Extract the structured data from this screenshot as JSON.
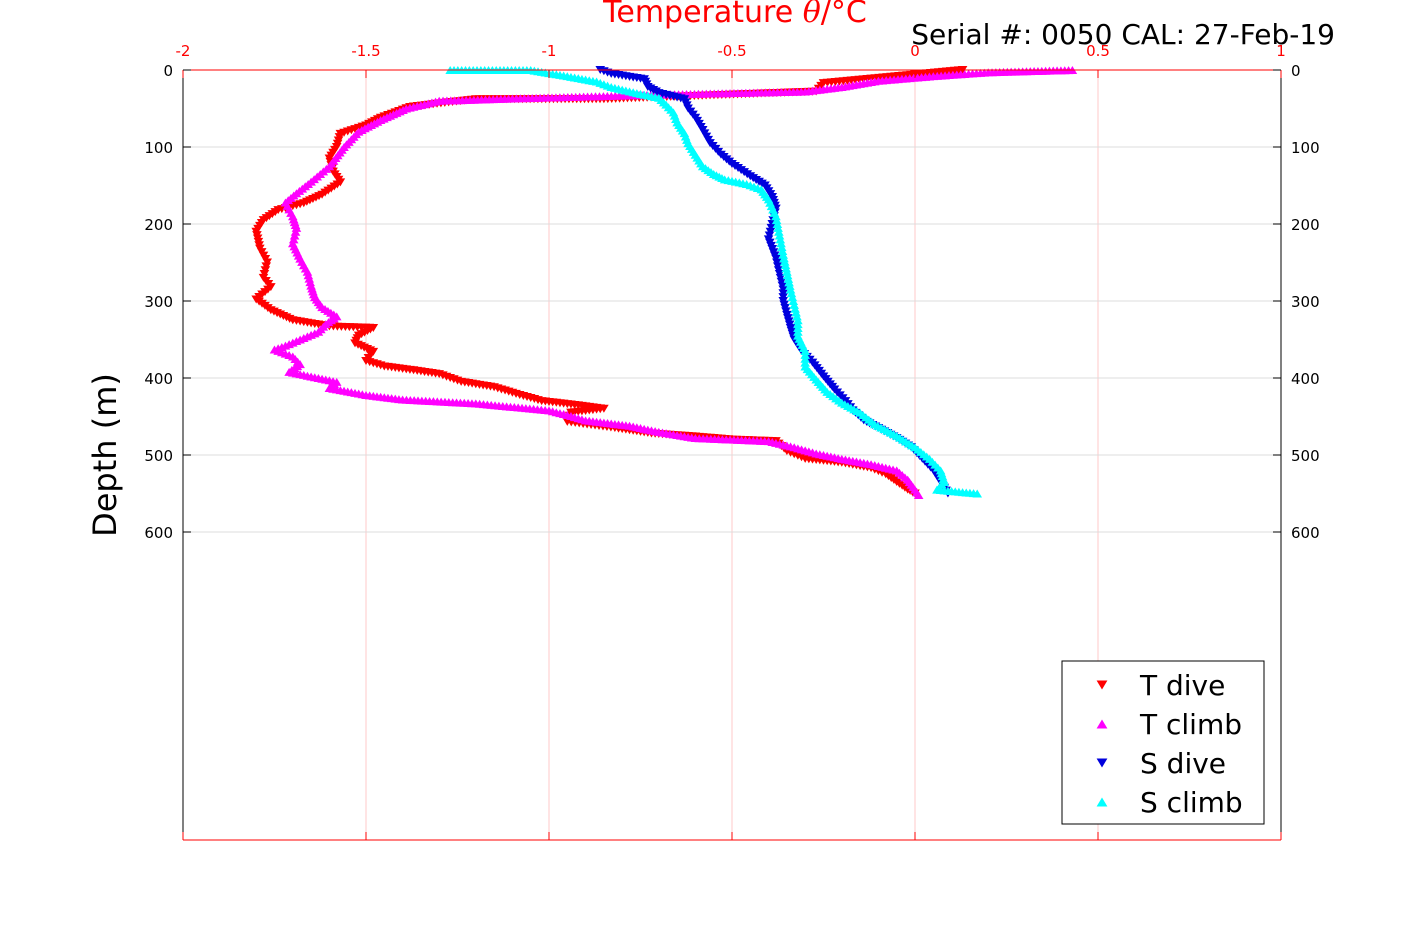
{
  "header": {
    "title_prefix": "Temperature ",
    "title_symbol": "θ",
    "title_unit": "/°C",
    "serial_text": "Serial #: 0050  CAL: 27-Feb-19"
  },
  "chart_data": {
    "type": "scatter",
    "title": "Temperature θ/°C",
    "ylabel": "Depth (m)",
    "xlim": [
      -2,
      1
    ],
    "ylim": [
      0,
      1000
    ],
    "y_reversed": true,
    "x_axis_position": "top",
    "x_ticks": [
      "-2",
      "-1.5",
      "-1",
      "-0.5",
      "0",
      "0.5",
      "1"
    ],
    "x_tick_values": [
      -2,
      -1.5,
      -1,
      -0.5,
      0,
      0.5,
      1
    ],
    "y_ticks": [
      "0",
      "100",
      "200",
      "300",
      "400",
      "500",
      "600"
    ],
    "y_tick_values": [
      0,
      100,
      200,
      300,
      400,
      500,
      600
    ],
    "grid": true,
    "legend_position": "bottom-right",
    "series": [
      {
        "name": "T dive",
        "color": "#ff0000",
        "marker": "triangle-down",
        "points": [
          [
            0.13,
            0
          ],
          [
            -0.25,
            17
          ],
          [
            -0.27,
            28
          ],
          [
            -0.85,
            38
          ],
          [
            -1.2,
            38
          ],
          [
            -1.38,
            48
          ],
          [
            -1.46,
            62
          ],
          [
            -1.5,
            72
          ],
          [
            -1.57,
            83
          ],
          [
            -1.58,
            100
          ],
          [
            -1.6,
            115
          ],
          [
            -1.59,
            132
          ],
          [
            -1.57,
            146
          ],
          [
            -1.62,
            162
          ],
          [
            -1.67,
            173
          ],
          [
            -1.74,
            182
          ],
          [
            -1.78,
            195
          ],
          [
            -1.8,
            210
          ],
          [
            -1.79,
            232
          ],
          [
            -1.77,
            250
          ],
          [
            -1.78,
            270
          ],
          [
            -1.76,
            282
          ],
          [
            -1.8,
            298
          ],
          [
            -1.76,
            312
          ],
          [
            -1.7,
            325
          ],
          [
            -1.6,
            333
          ],
          [
            -1.48,
            335
          ],
          [
            -1.52,
            345
          ],
          [
            -1.53,
            355
          ],
          [
            -1.48,
            366
          ],
          [
            -1.5,
            378
          ],
          [
            -1.45,
            385
          ],
          [
            -1.37,
            390
          ],
          [
            -1.3,
            395
          ],
          [
            -1.24,
            405
          ],
          [
            -1.15,
            412
          ],
          [
            -1.08,
            422
          ],
          [
            -1.02,
            430
          ],
          [
            -0.93,
            435
          ],
          [
            -0.85,
            440
          ],
          [
            -0.94,
            445
          ],
          [
            -0.95,
            457
          ],
          [
            -0.82,
            465
          ],
          [
            -0.72,
            472
          ],
          [
            -0.6,
            476
          ],
          [
            -0.5,
            480
          ],
          [
            -0.38,
            482
          ],
          [
            -0.35,
            495
          ],
          [
            -0.3,
            505
          ],
          [
            -0.2,
            510
          ],
          [
            -0.12,
            517
          ],
          [
            -0.08,
            525
          ],
          [
            -0.05,
            535
          ],
          [
            -0.02,
            545
          ],
          [
            0.0,
            550
          ]
        ]
      },
      {
        "name": "T climb",
        "color": "#ff00ff",
        "marker": "triangle-up",
        "points": [
          [
            0.43,
            0
          ],
          [
            0.2,
            3
          ],
          [
            0.05,
            8
          ],
          [
            -0.1,
            14
          ],
          [
            -0.2,
            22
          ],
          [
            -0.3,
            28
          ],
          [
            -0.7,
            32
          ],
          [
            -1.1,
            37
          ],
          [
            -1.3,
            40
          ],
          [
            -1.39,
            50
          ],
          [
            -1.46,
            65
          ],
          [
            -1.52,
            80
          ],
          [
            -1.56,
            100
          ],
          [
            -1.6,
            125
          ],
          [
            -1.65,
            145
          ],
          [
            -1.69,
            160
          ],
          [
            -1.72,
            172
          ],
          [
            -1.7,
            190
          ],
          [
            -1.69,
            205
          ],
          [
            -1.7,
            225
          ],
          [
            -1.68,
            245
          ],
          [
            -1.66,
            262
          ],
          [
            -1.65,
            280
          ],
          [
            -1.64,
            295
          ],
          [
            -1.62,
            308
          ],
          [
            -1.58,
            320
          ],
          [
            -1.61,
            330
          ],
          [
            -1.63,
            340
          ],
          [
            -1.68,
            350
          ],
          [
            -1.72,
            358
          ],
          [
            -1.75,
            363
          ],
          [
            -1.7,
            372
          ],
          [
            -1.68,
            382
          ],
          [
            -1.71,
            392
          ],
          [
            -1.58,
            405
          ],
          [
            -1.6,
            413
          ],
          [
            -1.5,
            422
          ],
          [
            -1.4,
            428
          ],
          [
            -1.2,
            433
          ],
          [
            -1.0,
            442
          ],
          [
            -0.95,
            448
          ],
          [
            -0.9,
            455
          ],
          [
            -0.78,
            462
          ],
          [
            -0.7,
            470
          ],
          [
            -0.6,
            478
          ],
          [
            -0.4,
            482
          ],
          [
            -0.33,
            490
          ],
          [
            -0.27,
            498
          ],
          [
            -0.2,
            505
          ],
          [
            -0.12,
            512
          ],
          [
            -0.05,
            520
          ],
          [
            -0.02,
            532
          ],
          [
            0.0,
            545
          ],
          [
            0.01,
            552
          ]
        ]
      },
      {
        "name": "S dive",
        "color": "#0000dd",
        "marker": "triangle-down",
        "points": [
          [
            -0.86,
            0
          ],
          [
            -0.83,
            5
          ],
          [
            -0.74,
            12
          ],
          [
            -0.73,
            22
          ],
          [
            -0.7,
            30
          ],
          [
            -0.63,
            38
          ],
          [
            -0.62,
            50
          ],
          [
            -0.6,
            62
          ],
          [
            -0.58,
            78
          ],
          [
            -0.56,
            95
          ],
          [
            -0.53,
            110
          ],
          [
            -0.5,
            122
          ],
          [
            -0.45,
            138
          ],
          [
            -0.41,
            150
          ],
          [
            -0.39,
            165
          ],
          [
            -0.38,
            180
          ],
          [
            -0.39,
            200
          ],
          [
            -0.4,
            220
          ],
          [
            -0.38,
            245
          ],
          [
            -0.37,
            265
          ],
          [
            -0.36,
            285
          ],
          [
            -0.36,
            300
          ],
          [
            -0.35,
            318
          ],
          [
            -0.34,
            335
          ],
          [
            -0.33,
            350
          ],
          [
            -0.31,
            365
          ],
          [
            -0.28,
            380
          ],
          [
            -0.25,
            398
          ],
          [
            -0.22,
            415
          ],
          [
            -0.19,
            430
          ],
          [
            -0.17,
            442
          ],
          [
            -0.14,
            455
          ],
          [
            -0.1,
            465
          ],
          [
            -0.05,
            478
          ],
          [
            -0.01,
            490
          ],
          [
            0.02,
            505
          ],
          [
            0.05,
            520
          ],
          [
            0.07,
            535
          ],
          [
            0.09,
            550
          ]
        ]
      },
      {
        "name": "S climb",
        "color": "#00ffff",
        "marker": "triangle-up",
        "points": [
          [
            -1.27,
            0
          ],
          [
            -1.05,
            0
          ],
          [
            -0.95,
            8
          ],
          [
            -0.87,
            15
          ],
          [
            -0.83,
            22
          ],
          [
            -0.76,
            30
          ],
          [
            -0.7,
            36
          ],
          [
            -0.68,
            45
          ],
          [
            -0.66,
            55
          ],
          [
            -0.65,
            68
          ],
          [
            -0.63,
            82
          ],
          [
            -0.62,
            95
          ],
          [
            -0.6,
            110
          ],
          [
            -0.58,
            125
          ],
          [
            -0.55,
            135
          ],
          [
            -0.52,
            142
          ],
          [
            -0.46,
            148
          ],
          [
            -0.42,
            155
          ],
          [
            -0.4,
            168
          ],
          [
            -0.38,
            190
          ],
          [
            -0.37,
            215
          ],
          [
            -0.36,
            240
          ],
          [
            -0.35,
            262
          ],
          [
            -0.34,
            285
          ],
          [
            -0.33,
            305
          ],
          [
            -0.32,
            325
          ],
          [
            -0.32,
            345
          ],
          [
            -0.3,
            365
          ],
          [
            -0.3,
            385
          ],
          [
            -0.27,
            402
          ],
          [
            -0.24,
            418
          ],
          [
            -0.2,
            432
          ],
          [
            -0.15,
            445
          ],
          [
            -0.11,
            460
          ],
          [
            -0.05,
            475
          ],
          [
            0.0,
            490
          ],
          [
            0.04,
            505
          ],
          [
            0.07,
            520
          ],
          [
            0.08,
            535
          ],
          [
            0.06,
            545
          ],
          [
            0.17,
            550
          ]
        ]
      }
    ]
  }
}
